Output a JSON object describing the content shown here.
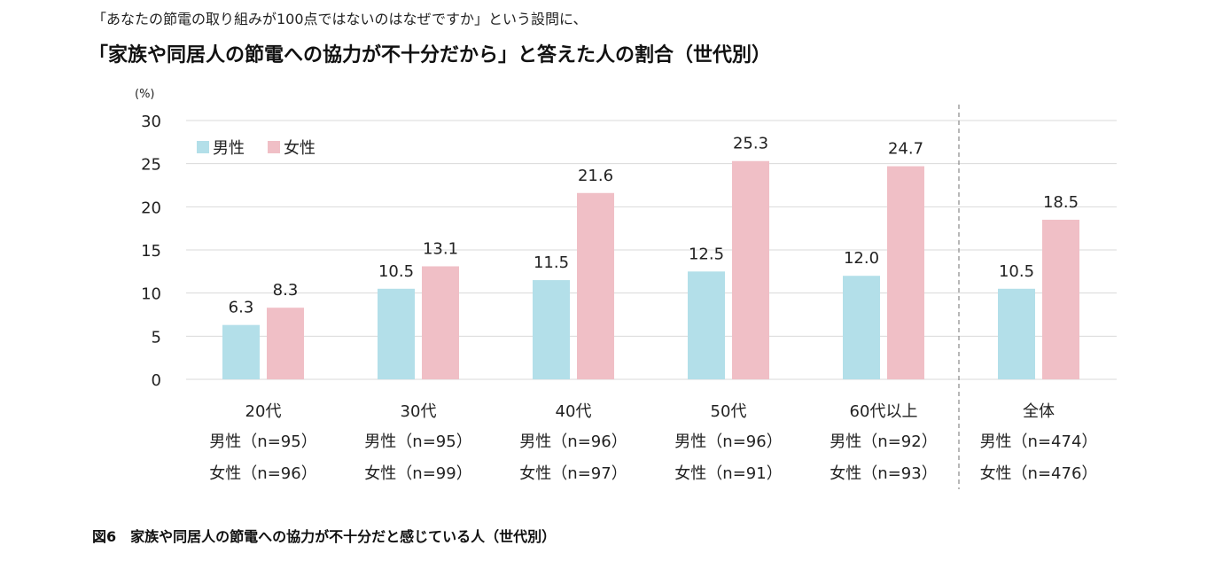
{
  "header": {
    "subtitle": "「あなたの節電の取り組みが100点ではないのはなぜですか」という設問に、",
    "title": "「家族や同居人の節電への協力が不十分だから」と答えた人の割合（世代別）"
  },
  "caption": "図6　家族や同居人の節電への協力が不十分だと感じている人（世代別）",
  "chart_data": {
    "type": "bar",
    "ylabel": "(%)",
    "ylim": [
      0,
      30
    ],
    "yticks": [
      0,
      5,
      10,
      15,
      20,
      25,
      30
    ],
    "grid": true,
    "legend": "top-left",
    "categories": [
      "20代",
      "30代",
      "40代",
      "50代",
      "60代以上",
      "全体"
    ],
    "category_sublabels": [
      [
        "男性（n=95）",
        "女性（n=96）"
      ],
      [
        "男性（n=95）",
        "女性（n=99）"
      ],
      [
        "男性（n=96）",
        "女性（n=97）"
      ],
      [
        "男性（n=96）",
        "女性（n=91）"
      ],
      [
        "男性（n=92）",
        "女性（n=93）"
      ],
      [
        "男性（n=474）",
        "女性（n=476）"
      ]
    ],
    "series": [
      {
        "name": "男性",
        "color": "#b3dfe9",
        "values": [
          6.3,
          10.5,
          11.5,
          12.5,
          12.0,
          10.5
        ]
      },
      {
        "name": "女性",
        "color": "#f0bfc6",
        "values": [
          8.3,
          13.1,
          21.6,
          25.3,
          24.7,
          18.5
        ]
      }
    ]
  }
}
